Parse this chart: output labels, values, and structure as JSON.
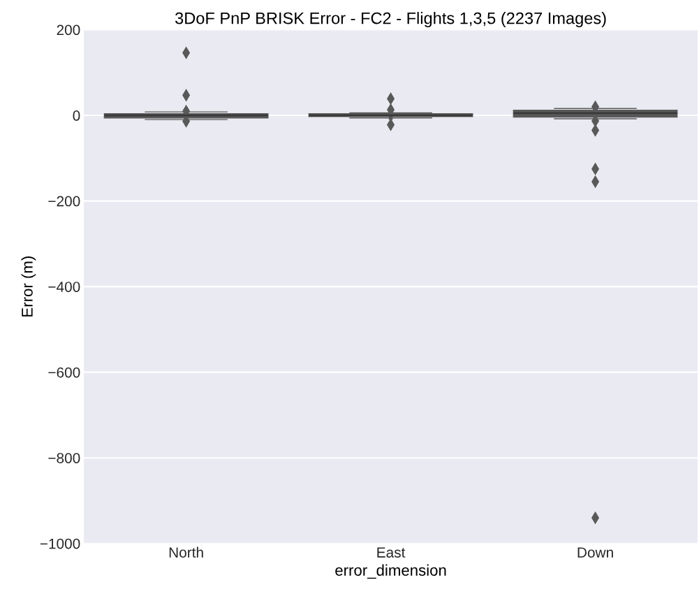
{
  "chart_data": {
    "type": "box",
    "title": "3DoF PnP BRISK Error - FC2 - Flights 1,3,5 (2237 Images)",
    "xlabel": "error_dimension",
    "ylabel": "Error (m)",
    "categories": [
      "North",
      "East",
      "Down"
    ],
    "color": "#595959",
    "boxes": [
      {
        "low": -10,
        "q1": -6,
        "median": 0,
        "q3": 4,
        "high": 8,
        "outliers": [
          146,
          47,
          10,
          -14
        ]
      },
      {
        "low": -6,
        "q1": -3,
        "median": 0,
        "q3": 4,
        "high": 6,
        "outliers": [
          39,
          13,
          -22
        ]
      },
      {
        "low": -8,
        "q1": -4,
        "median": 5,
        "q3": 12,
        "high": 16,
        "outliers": [
          20,
          -13,
          -35,
          -125,
          -155,
          -940
        ]
      }
    ],
    "ylim": [
      -1000,
      200
    ],
    "yticks": [
      {
        "value": -1000,
        "label": "−1000"
      },
      {
        "value": -800,
        "label": "−800"
      },
      {
        "value": -600,
        "label": "−600"
      },
      {
        "value": -400,
        "label": "−400"
      },
      {
        "value": -200,
        "label": "−200"
      },
      0,
      200
    ],
    "grid": "y",
    "marker": "diamond"
  }
}
